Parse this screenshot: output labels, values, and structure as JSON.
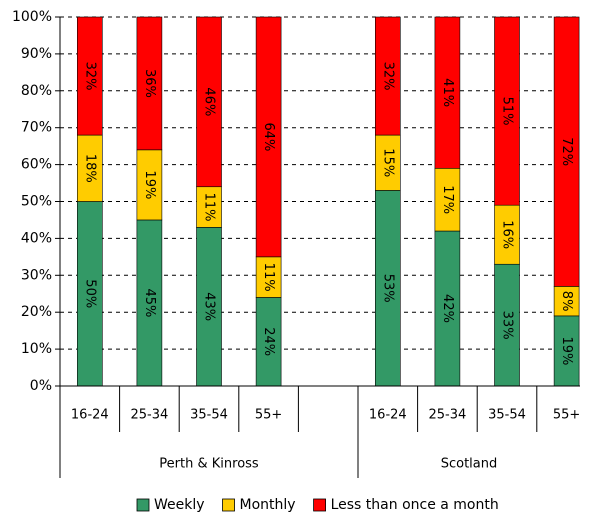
{
  "chart_data": {
    "type": "bar",
    "stacked": true,
    "percent_axis": true,
    "ylim": [
      0,
      100
    ],
    "yticks": [
      0,
      10,
      20,
      30,
      40,
      50,
      60,
      70,
      80,
      90,
      100
    ],
    "ytick_labels": [
      "0%",
      "10%",
      "20%",
      "30%",
      "40%",
      "50%",
      "60%",
      "70%",
      "80%",
      "90%",
      "100%"
    ],
    "grid": true,
    "legend_position": "bottom",
    "groups": [
      {
        "name": "Perth & Kinross",
        "categories": [
          "16-24",
          "25-34",
          "35-54",
          "55+"
        ]
      },
      {
        "name": "Scotland",
        "categories": [
          "16-24",
          "25-34",
          "35-54",
          "55+"
        ]
      }
    ],
    "series": [
      {
        "name": "Weekly",
        "color": "#339966",
        "values": [
          50,
          45,
          43,
          24,
          53,
          42,
          33,
          19
        ],
        "labels": [
          "50%",
          "45%",
          "43%",
          "24%",
          "53%",
          "42%",
          "33%",
          "19%"
        ]
      },
      {
        "name": "Monthly",
        "color": "#FFCC00",
        "values": [
          18,
          19,
          11,
          11,
          15,
          17,
          16,
          8
        ],
        "labels": [
          "18%",
          "19%",
          "11%",
          "11%",
          "15%",
          "17%",
          "16%",
          "8%"
        ]
      },
      {
        "name": "Less than once a month",
        "color": "#FF0000",
        "values": [
          32,
          36,
          46,
          64,
          32,
          41,
          51,
          72
        ],
        "labels": [
          "32%",
          "36%",
          "46%",
          "64%",
          "32%",
          "41%",
          "51%",
          "72%"
        ]
      }
    ]
  }
}
